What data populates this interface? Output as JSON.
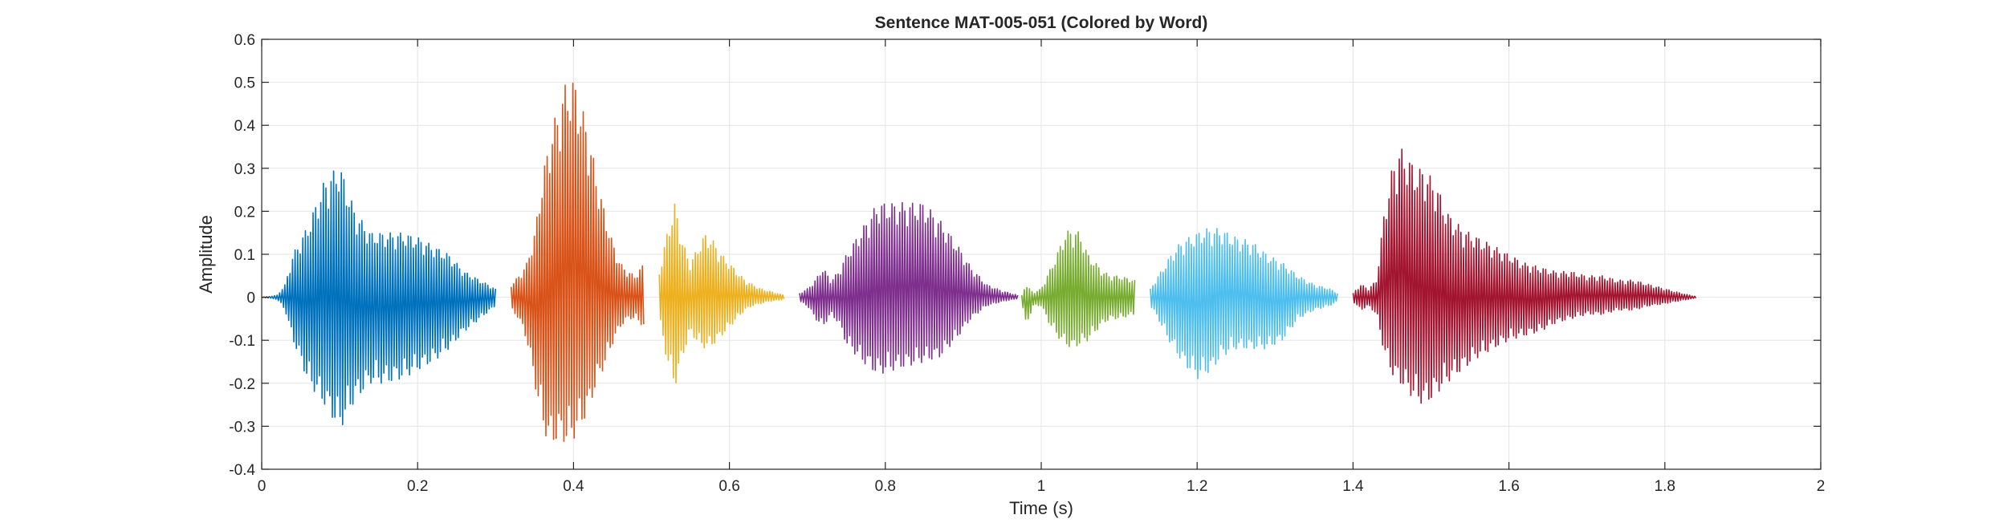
{
  "chart_data": {
    "type": "line",
    "title": "Sentence MAT-005-051 (Colored by Word)",
    "xlabel": "Time (s)",
    "ylabel": "Amplitude",
    "xlim": [
      0,
      2
    ],
    "ylim": [
      -0.4,
      0.6
    ],
    "xticks": [
      0,
      0.2,
      0.4,
      0.6,
      0.8,
      1,
      1.2,
      1.4,
      1.6,
      1.8,
      2
    ],
    "xtick_labels": [
      "0",
      "0.2",
      "0.4",
      "0.6",
      "0.8",
      "1",
      "1.2",
      "1.4",
      "1.6",
      "1.8",
      "2"
    ],
    "yticks": [
      -0.4,
      -0.3,
      -0.2,
      -0.1,
      0,
      0.1,
      0.2,
      0.3,
      0.4,
      0.5,
      0.6
    ],
    "ytick_labels": [
      "-0.4",
      "-0.3",
      "-0.2",
      "-0.1",
      "0",
      "0.1",
      "0.2",
      "0.3",
      "0.4",
      "0.5",
      "0.6"
    ],
    "grid": true,
    "legend": false,
    "series": [
      {
        "color": "#0072BD",
        "x": [
          0.0,
          0.01,
          0.02,
          0.03,
          0.04,
          0.06,
          0.08,
          0.1,
          0.12,
          0.14,
          0.16,
          0.18,
          0.2,
          0.22,
          0.24,
          0.26,
          0.28,
          0.3
        ],
        "y_max": [
          0.0,
          0.002,
          0.005,
          0.03,
          0.1,
          0.17,
          0.27,
          0.31,
          0.2,
          0.15,
          0.15,
          0.15,
          0.14,
          0.12,
          0.1,
          0.06,
          0.04,
          0.02
        ],
        "y_min": [
          0.0,
          -0.002,
          -0.005,
          -0.03,
          -0.1,
          -0.2,
          -0.25,
          -0.31,
          -0.24,
          -0.2,
          -0.2,
          -0.19,
          -0.17,
          -0.15,
          -0.12,
          -0.08,
          -0.05,
          -0.02
        ]
      },
      {
        "color": "#D95319",
        "x": [
          0.32,
          0.33,
          0.34,
          0.35,
          0.36,
          0.37,
          0.38,
          0.39,
          0.4,
          0.41,
          0.42,
          0.43,
          0.44,
          0.45,
          0.46,
          0.47,
          0.48,
          0.49
        ],
        "y_max": [
          0.03,
          0.05,
          0.08,
          0.15,
          0.28,
          0.38,
          0.44,
          0.5,
          0.51,
          0.45,
          0.38,
          0.28,
          0.2,
          0.13,
          0.08,
          0.06,
          0.05,
          0.08
        ],
        "y_min": [
          -0.03,
          -0.05,
          -0.1,
          -0.2,
          -0.3,
          -0.35,
          -0.33,
          -0.34,
          -0.33,
          -0.3,
          -0.26,
          -0.2,
          -0.16,
          -0.11,
          -0.07,
          -0.05,
          -0.05,
          -0.07
        ]
      },
      {
        "color": "#EDB120",
        "x": [
          0.51,
          0.52,
          0.53,
          0.54,
          0.55,
          0.56,
          0.57,
          0.58,
          0.59,
          0.6,
          0.61,
          0.62,
          0.63,
          0.64,
          0.65,
          0.67
        ],
        "y_max": [
          0.06,
          0.15,
          0.22,
          0.13,
          0.08,
          0.12,
          0.15,
          0.13,
          0.1,
          0.08,
          0.06,
          0.04,
          0.03,
          0.02,
          0.015,
          0.005
        ],
        "y_min": [
          -0.05,
          -0.15,
          -0.21,
          -0.14,
          -0.08,
          -0.11,
          -0.12,
          -0.11,
          -0.09,
          -0.07,
          -0.05,
          -0.03,
          -0.02,
          -0.015,
          -0.01,
          -0.005
        ]
      },
      {
        "color": "#7E2F8E",
        "x": [
          0.69,
          0.7,
          0.71,
          0.72,
          0.73,
          0.74,
          0.75,
          0.77,
          0.79,
          0.81,
          0.83,
          0.85,
          0.87,
          0.89,
          0.91,
          0.93,
          0.95,
          0.97
        ],
        "y_max": [
          0.01,
          0.02,
          0.04,
          0.07,
          0.04,
          0.06,
          0.1,
          0.16,
          0.22,
          0.22,
          0.22,
          0.22,
          0.18,
          0.13,
          0.07,
          0.03,
          0.015,
          0.005
        ],
        "y_min": [
          -0.01,
          -0.02,
          -0.05,
          -0.07,
          -0.04,
          -0.06,
          -0.11,
          -0.15,
          -0.18,
          -0.17,
          -0.16,
          -0.15,
          -0.14,
          -0.1,
          -0.05,
          -0.02,
          -0.01,
          -0.003
        ]
      },
      {
        "color": "#77AC30",
        "x": [
          0.975,
          0.98,
          0.99,
          1.0,
          1.01,
          1.02,
          1.03,
          1.04,
          1.05,
          1.06,
          1.07,
          1.08,
          1.09,
          1.1,
          1.12
        ],
        "y_max": [
          0.005,
          0.03,
          0.01,
          0.02,
          0.06,
          0.1,
          0.15,
          0.16,
          0.15,
          0.1,
          0.08,
          0.06,
          0.05,
          0.05,
          0.04
        ],
        "y_min": [
          -0.005,
          -0.07,
          -0.02,
          -0.02,
          -0.06,
          -0.09,
          -0.11,
          -0.12,
          -0.11,
          -0.1,
          -0.08,
          -0.06,
          -0.05,
          -0.05,
          -0.04
        ]
      },
      {
        "color": "#4DBEEE",
        "x": [
          1.14,
          1.15,
          1.16,
          1.17,
          1.18,
          1.19,
          1.2,
          1.21,
          1.22,
          1.23,
          1.25,
          1.27,
          1.29,
          1.31,
          1.33,
          1.35,
          1.37,
          1.38
        ],
        "y_max": [
          0.02,
          0.05,
          0.08,
          0.11,
          0.13,
          0.14,
          0.15,
          0.16,
          0.16,
          0.16,
          0.14,
          0.13,
          0.1,
          0.08,
          0.05,
          0.03,
          0.02,
          0.01
        ],
        "y_min": [
          -0.02,
          -0.05,
          -0.09,
          -0.12,
          -0.15,
          -0.17,
          -0.19,
          -0.18,
          -0.17,
          -0.14,
          -0.12,
          -0.12,
          -0.12,
          -0.1,
          -0.05,
          -0.03,
          -0.02,
          -0.01
        ]
      },
      {
        "color": "#A2142F",
        "x": [
          1.4,
          1.41,
          1.42,
          1.43,
          1.44,
          1.45,
          1.46,
          1.47,
          1.48,
          1.49,
          1.5,
          1.51,
          1.52,
          1.54,
          1.56,
          1.58,
          1.6,
          1.62,
          1.64,
          1.66,
          1.68,
          1.7,
          1.72,
          1.74,
          1.76,
          1.78,
          1.8,
          1.82,
          1.84
        ],
        "y_max": [
          0.01,
          0.03,
          0.02,
          0.04,
          0.2,
          0.3,
          0.35,
          0.33,
          0.3,
          0.3,
          0.28,
          0.25,
          0.2,
          0.16,
          0.14,
          0.12,
          0.1,
          0.08,
          0.07,
          0.06,
          0.06,
          0.05,
          0.05,
          0.04,
          0.04,
          0.03,
          0.02,
          0.01,
          0.002
        ],
        "y_min": [
          -0.01,
          -0.03,
          -0.02,
          -0.04,
          -0.13,
          -0.18,
          -0.2,
          -0.22,
          -0.24,
          -0.25,
          -0.24,
          -0.22,
          -0.2,
          -0.17,
          -0.14,
          -0.12,
          -0.1,
          -0.09,
          -0.08,
          -0.06,
          -0.05,
          -0.04,
          -0.04,
          -0.03,
          -0.03,
          -0.02,
          -0.015,
          -0.008,
          -0.002
        ]
      }
    ]
  }
}
